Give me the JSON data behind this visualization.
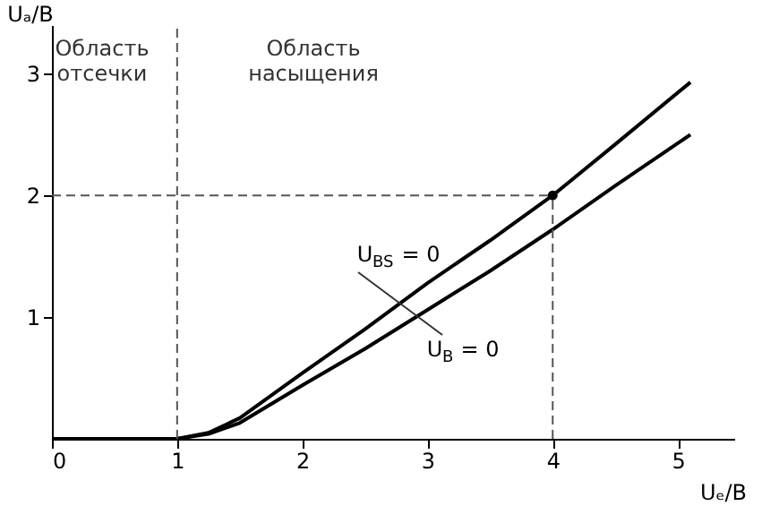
{
  "chart_data": {
    "type": "line",
    "xlabel": "Uₑ/B",
    "ylabel": "Uₐ/B",
    "xlim": [
      0,
      5.45
    ],
    "ylim": [
      0,
      3.4
    ],
    "xticks": [
      0,
      1,
      2,
      3,
      4,
      5
    ],
    "yticks": [
      1,
      2,
      3
    ],
    "grid": false,
    "marker": "none",
    "line_style": "solid",
    "series": [
      {
        "x": [
          0,
          0.5,
          1,
          1.25,
          1.5,
          2,
          2.5,
          3,
          3.5,
          4,
          4.5,
          5.1
        ],
        "values": [
          0,
          0,
          0,
          0.05,
          0.17,
          0.54,
          0.9,
          1.28,
          1.63,
          2.0,
          2.42,
          2.93
        ],
        "color": "#000000"
      },
      {
        "x": [
          0,
          0.5,
          1,
          1.25,
          1.5,
          2,
          2.5,
          3,
          3.5,
          4,
          4.5,
          5.1
        ],
        "values": [
          0,
          0,
          0,
          0.04,
          0.13,
          0.44,
          0.74,
          1.06,
          1.38,
          1.72,
          2.08,
          2.5
        ],
        "color": "#000000"
      },
      {
        "type": "scatter",
        "x": [
          4
        ],
        "values": [
          2
        ],
        "color": "#000000",
        "marker": "circle"
      }
    ],
    "ref_lines": [
      {
        "axis": "x",
        "value": 1,
        "line_style": "dashed",
        "color": "#555555"
      },
      {
        "axis": "x",
        "value": 4,
        "line_style": "dashed",
        "color": "#555555"
      },
      {
        "axis": "y",
        "value": 2,
        "line_style": "dashed",
        "color": "#555555"
      }
    ],
    "annotations": [
      "Область отсечки",
      "Область насыщения",
      "U$_{BS}$ = 0",
      "U$_{B}$ = 0"
    ]
  }
}
